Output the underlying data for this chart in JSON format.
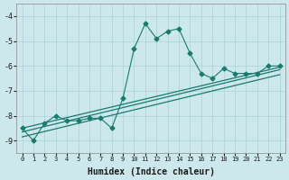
{
  "xlabel": "Humidex (Indice chaleur)",
  "bg_color": "#cce8ec",
  "grid_color": "#b0d5da",
  "line_color": "#1a7a6e",
  "xlim": [
    -0.5,
    23.5
  ],
  "ylim": [
    -9.5,
    -3.5
  ],
  "xtick_vals": [
    0,
    1,
    2,
    3,
    4,
    5,
    6,
    7,
    8,
    9,
    10,
    11,
    12,
    13,
    14,
    15,
    16,
    17,
    18,
    19,
    20,
    21,
    22,
    23
  ],
  "xtick_labels": [
    "0",
    "1",
    "2",
    "3",
    "4",
    "5",
    "6",
    "7",
    "8",
    "9",
    "10",
    "11",
    "12",
    "13",
    "14",
    "15",
    "16",
    "17",
    "18",
    "19",
    "20",
    "21",
    "22",
    "23"
  ],
  "ytick_vals": [
    -9,
    -8,
    -7,
    -6,
    -5,
    -4
  ],
  "ytick_labels": [
    "-9",
    "-8",
    "-7",
    "-6",
    "-5",
    "-4"
  ],
  "scatter_x": [
    0,
    1,
    2,
    3,
    4,
    5,
    6,
    7,
    8,
    9,
    10,
    11,
    12,
    13,
    14,
    15,
    16,
    17,
    18,
    19,
    20,
    21,
    22,
    23
  ],
  "scatter_y": [
    -8.5,
    -9.0,
    -8.3,
    -8.0,
    -8.2,
    -8.2,
    -8.1,
    -8.1,
    -8.5,
    -7.3,
    -5.3,
    -4.3,
    -4.9,
    -4.6,
    -4.5,
    -5.5,
    -6.3,
    -6.5,
    -6.1,
    -6.3,
    -6.3,
    -6.3,
    -6.0,
    -6.0
  ],
  "line1_x": [
    0,
    23
  ],
  "line1_y": [
    -8.5,
    -6.05
  ],
  "line2_x": [
    0,
    23
  ],
  "line2_y": [
    -8.65,
    -6.15
  ],
  "line3_x": [
    0,
    23
  ],
  "line3_y": [
    -8.85,
    -6.35
  ],
  "tick_fontsize": 5,
  "xlabel_fontsize": 7
}
